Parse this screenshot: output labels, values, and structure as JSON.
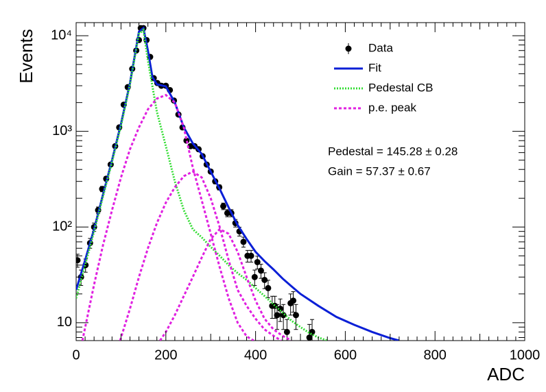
{
  "chart_data": {
    "type": "line",
    "xlabel": "ADC",
    "ylabel": "Events",
    "xlim": [
      0,
      1000
    ],
    "xticks": [
      0,
      200,
      400,
      600,
      800,
      1000
    ],
    "ylim": [
      6.5,
      13700
    ],
    "log_y": true,
    "yticks": [
      {
        "value": 10,
        "label": "10"
      },
      {
        "value": 100,
        "label": "10²"
      },
      {
        "value": 1000,
        "label": "10³"
      },
      {
        "value": 10000,
        "label": "10⁴"
      }
    ],
    "legend": "top-right",
    "annotations": [
      "Pedestal = 145.28 ± 0.28",
      "Gain = 57.37 ± 0.67"
    ],
    "series": [
      {
        "name": "Data",
        "style": "points",
        "color": "#000000",
        "x": [
          3,
          11,
          21,
          31,
          40,
          49,
          58,
          67,
          77,
          87,
          96,
          106,
          115,
          125,
          134,
          140,
          144,
          150,
          157,
          165,
          173,
          181,
          190,
          200,
          209,
          218,
          228,
          237,
          246,
          255,
          264,
          273,
          282,
          291,
          300,
          310,
          319,
          328,
          337,
          346,
          355,
          364,
          373,
          382,
          390,
          398,
          404,
          412,
          420,
          428,
          437,
          443,
          448,
          455,
          462,
          470,
          478,
          484,
          490,
          520,
          526
        ],
        "values": [
          45,
          30,
          40,
          68,
          100,
          150,
          250,
          320,
          450,
          700,
          1100,
          1900,
          2900,
          4500,
          7000,
          9000,
          12000,
          12000,
          9000,
          6000,
          3600,
          3200,
          3000,
          3000,
          2700,
          2100,
          1500,
          1100,
          800,
          700,
          700,
          650,
          550,
          450,
          380,
          300,
          260,
          165,
          140,
          140,
          110,
          90,
          70,
          50,
          50,
          30,
          43,
          35,
          28,
          23,
          15,
          15,
          12,
          14,
          12,
          8,
          16,
          17,
          12,
          7,
          8
        ],
        "errors": [
          7,
          5.5,
          6.3,
          8,
          10,
          12,
          16,
          18,
          21,
          26,
          33,
          44,
          54,
          67,
          84,
          95,
          110,
          110,
          95,
          77,
          60,
          57,
          55,
          55,
          52,
          46,
          39,
          33,
          28,
          26,
          26,
          25,
          23,
          21,
          19,
          17,
          16,
          13,
          12,
          12,
          10,
          9.5,
          8.4,
          7,
          7,
          5.5,
          6.6,
          5.9,
          5.3,
          4.8,
          3.9,
          3.9,
          3.5,
          3.7,
          3.5,
          2.8,
          4,
          4.1,
          3.5,
          2.6,
          2.8
        ]
      },
      {
        "name": "Fit",
        "style": "solid",
        "color": "#0a1fd6",
        "x": [
          0,
          20,
          40,
          60,
          80,
          100,
          120,
          140,
          150,
          160,
          170,
          180,
          200,
          220,
          240,
          260,
          280,
          300,
          320,
          340,
          360,
          380,
          400,
          420,
          440,
          460,
          480,
          500,
          540,
          580,
          620,
          660,
          700,
          720
        ],
        "values": [
          22,
          45,
          95,
          220,
          500,
          1200,
          3200,
          11000,
          12000,
          7000,
          3700,
          3100,
          2950,
          2000,
          1100,
          750,
          580,
          380,
          250,
          160,
          105,
          75,
          55,
          44,
          36,
          29,
          24,
          20,
          15,
          11.5,
          9.5,
          8,
          6.9,
          6.5
        ]
      },
      {
        "name": "Pedestal CB",
        "style": "dotted",
        "color": "#33dd33",
        "x": [
          0,
          20,
          40,
          60,
          80,
          100,
          120,
          140,
          150,
          160,
          180,
          200,
          220,
          240,
          260,
          280,
          300,
          320,
          340,
          360,
          380,
          400,
          420,
          440,
          460,
          480,
          500,
          520,
          540,
          560
        ],
        "values": [
          18,
          40,
          90,
          210,
          480,
          1150,
          3100,
          10500,
          11500,
          5500,
          1600,
          700,
          300,
          150,
          95,
          78,
          62,
          50,
          40,
          33,
          28,
          23,
          19,
          15.5,
          12.8,
          10.5,
          9,
          7.8,
          7,
          6.5
        ]
      },
      {
        "name": "p.e. peak",
        "style": "dashed",
        "color": "#e020e0",
        "pieces": [
          {
            "x": [
              14,
              40,
              60,
              80,
              100,
              120,
              140,
              160,
              180,
              200,
              220,
              240,
              260,
              280,
              300,
              320,
              340,
              360,
              380,
              396
            ],
            "values": [
              6.5,
              25,
              65,
              150,
              330,
              650,
              1100,
              1700,
              2200,
              2400,
              2000,
              1100,
              420,
              190,
              85,
              38,
              18,
              10,
              7.2,
              6.5
            ]
          },
          {
            "x": [
              98,
              120,
              140,
              160,
              180,
              200,
              220,
              240,
              260,
              280,
              300,
              320,
              340,
              360,
              380,
              400,
              420,
              440,
              457
            ],
            "values": [
              6.5,
              14,
              30,
              60,
              110,
              180,
              260,
              340,
              380,
              330,
              200,
              100,
              45,
              22,
              15,
              11,
              8.5,
              7.3,
              6.5
            ]
          },
          {
            "x": [
              187,
              200,
              220,
              240,
              260,
              280,
              300,
              320,
              340,
              360,
              380,
              400,
              420,
              440,
              460,
              480
            ],
            "values": [
              6.5,
              8,
              12,
              19,
              30,
              48,
              75,
              95,
              85,
              55,
              30,
              17,
              11,
              8.5,
              7.3,
              6.5
            ]
          }
        ]
      }
    ]
  }
}
